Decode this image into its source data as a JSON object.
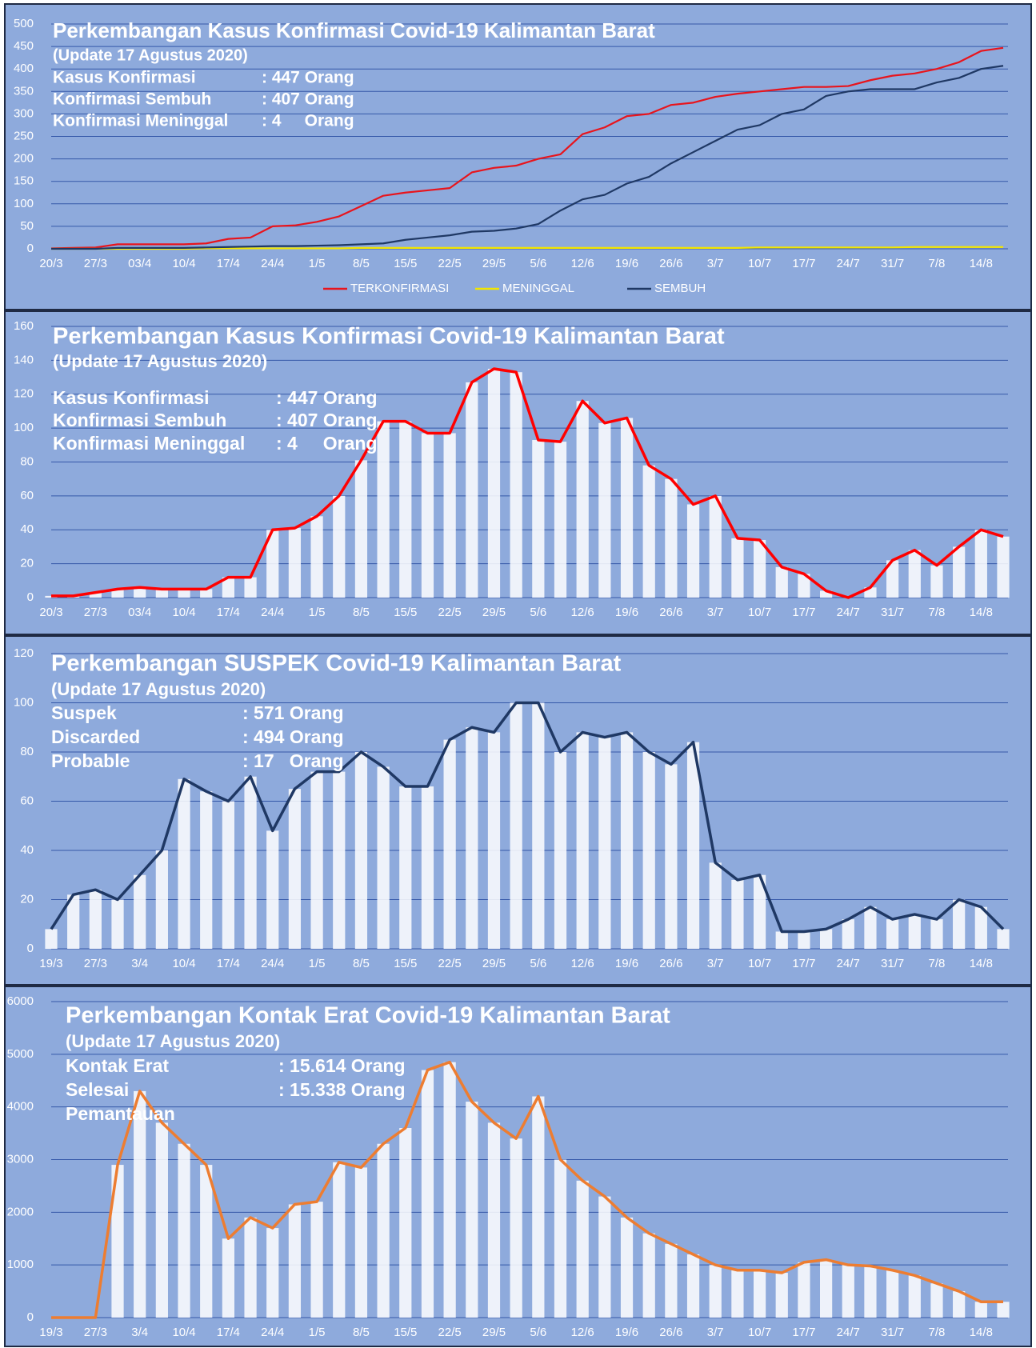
{
  "chart_data": [
    {
      "type": "line",
      "title": "Perkembangan Kasus Konfirmasi Covid-19 Kalimantan Barat",
      "subtitle": "(Update 17 Agustus 2020)",
      "info": [
        [
          "Kasus Konfirmasi",
          ": 447 Orang"
        ],
        [
          "Konfirmasi Sembuh",
          ": 407 Orang"
        ],
        [
          "Konfirmasi Meninggal",
          ": 4     Orang"
        ]
      ],
      "categories": [
        "20/3",
        null,
        "27/3",
        null,
        "03/4",
        null,
        "10/4",
        null,
        "17/4",
        null,
        "24/4",
        null,
        "1/5",
        null,
        "8/5",
        null,
        "15/5",
        null,
        "22/5",
        null,
        "29/5",
        null,
        "5/6",
        null,
        "12/6",
        null,
        "19/6",
        null,
        "26/6",
        null,
        "3/7",
        null,
        "10/7",
        null,
        "17/7",
        null,
        "24/7",
        null,
        "31/7",
        null,
        "7/8",
        null,
        "14/8",
        null
      ],
      "series": [
        {
          "name": "TERKONFIRMASI",
          "color": "#e8141c",
          "values": [
            1,
            2,
            3,
            10,
            10,
            10,
            10,
            12,
            22,
            25,
            50,
            52,
            60,
            72,
            95,
            118,
            125,
            130,
            135,
            170,
            180,
            185,
            200,
            210,
            255,
            270,
            295,
            300,
            320,
            325,
            338,
            345,
            350,
            355,
            360,
            360,
            362,
            375,
            385,
            390,
            400,
            415,
            440,
            447
          ]
        },
        {
          "name": "MENINGGAL",
          "color": "#f2e600",
          "values": [
            0,
            0,
            0,
            0,
            0,
            0,
            0,
            1,
            1,
            1,
            1,
            1,
            1,
            1,
            2,
            2,
            2,
            2,
            2,
            2,
            2,
            2,
            2,
            2,
            2,
            2,
            2,
            2,
            2,
            2,
            2,
            2,
            3,
            3,
            3,
            3,
            3,
            3,
            3,
            4,
            4,
            4,
            4,
            4
          ]
        },
        {
          "name": "SEMBUH",
          "color": "#1f3864",
          "values": [
            0,
            0,
            0,
            2,
            2,
            2,
            2,
            3,
            4,
            5,
            6,
            6,
            7,
            8,
            10,
            12,
            20,
            25,
            30,
            38,
            40,
            45,
            55,
            85,
            110,
            120,
            145,
            160,
            190,
            215,
            240,
            265,
            275,
            300,
            310,
            340,
            350,
            355,
            355,
            355,
            370,
            380,
            400,
            407
          ]
        }
      ],
      "ylim": [
        0,
        500
      ],
      "yticks": [
        0,
        50,
        100,
        150,
        200,
        250,
        300,
        350,
        400,
        450,
        500
      ],
      "grid": true,
      "legend": "bottom"
    },
    {
      "type": "bar-line",
      "title": "Perkembangan Kasus Konfirmasi Covid-19 Kalimantan Barat",
      "subtitle": "(Update 17 Agustus 2020)",
      "info": [
        [
          "Kasus Konfirmasi",
          ": 447 Orang"
        ],
        [
          "Konfirmasi Sembuh",
          ": 407 Orang"
        ],
        [
          "Konfirmasi Meninggal",
          ": 4     Orang"
        ]
      ],
      "categories": [
        "20/3",
        null,
        "27/3",
        null,
        "03/4",
        null,
        "10/4",
        null,
        "17/4",
        null,
        "24/4",
        null,
        "1/5",
        null,
        "8/5",
        null,
        "15/5",
        null,
        "22/5",
        null,
        "29/5",
        null,
        "5/6",
        null,
        "12/6",
        null,
        "19/6",
        null,
        "26/6",
        null,
        "3/7",
        null,
        "10/7",
        null,
        "17/7",
        null,
        "24/7",
        null,
        "31/7",
        null,
        "7/8",
        null,
        "14/8",
        null
      ],
      "values": [
        1,
        1,
        3,
        5,
        6,
        5,
        5,
        5,
        12,
        12,
        40,
        41,
        48,
        60,
        81,
        104,
        104,
        97,
        97,
        127,
        135,
        133,
        93,
        92,
        116,
        103,
        106,
        78,
        70,
        55,
        60,
        35,
        34,
        18,
        14,
        4,
        0,
        6,
        22,
        28,
        19,
        30,
        40,
        36
      ],
      "color": "#ff0000",
      "ylim": [
        0,
        160
      ],
      "yticks": [
        0,
        20,
        40,
        60,
        80,
        100,
        120,
        140,
        160
      ],
      "grid": true
    },
    {
      "type": "bar-line",
      "title": "Perkembangan SUSPEK Covid-19 Kalimantan Barat",
      "subtitle": "(Update 17 Agustus 2020)",
      "info": [
        [
          "Suspek",
          ": 571 Orang"
        ],
        [
          "Discarded",
          ": 494 Orang"
        ],
        [
          "Probable",
          ": 17   Orang"
        ]
      ],
      "categories": [
        "19/3",
        null,
        "27/3",
        null,
        "3/4",
        null,
        "10/4",
        null,
        "17/4",
        null,
        "24/4",
        null,
        "1/5",
        null,
        "8/5",
        null,
        "15/5",
        null,
        "22/5",
        null,
        "29/5",
        null,
        "5/6",
        null,
        "12/6",
        null,
        "19/6",
        null,
        "26/6",
        null,
        "3/7",
        null,
        "10/7",
        null,
        "17/7",
        null,
        "24/7",
        null,
        "31/7",
        null,
        "7/8",
        null,
        "14/8",
        null
      ],
      "values": [
        8,
        22,
        24,
        20,
        30,
        40,
        69,
        64,
        60,
        70,
        48,
        65,
        72,
        72,
        80,
        74,
        66,
        66,
        85,
        90,
        88,
        100,
        100,
        80,
        88,
        86,
        88,
        80,
        75,
        84,
        35,
        28,
        30,
        7,
        7,
        8,
        12,
        17,
        12,
        14,
        12,
        20,
        17,
        8
      ],
      "color": "#1f3864",
      "ylim": [
        0,
        120
      ],
      "yticks": [
        0,
        20,
        40,
        60,
        80,
        100,
        120
      ],
      "grid": true
    },
    {
      "type": "bar-line",
      "title": "Perkembangan Kontak Erat Covid-19 Kalimantan Barat",
      "subtitle": "(Update 17 Agustus 2020)",
      "info": [
        [
          "Kontak Erat",
          ": 15.614 Orang"
        ],
        [
          "Selesai",
          ": 15.338 Orang"
        ],
        [
          "Pemantauan"
        ]
      ],
      "categories": [
        "19/3",
        null,
        "27/3",
        null,
        "3/4",
        null,
        "10/4",
        null,
        "17/4",
        null,
        "24/4",
        null,
        "1/5",
        null,
        "8/5",
        null,
        "15/5",
        null,
        "22/5",
        null,
        "29/5",
        null,
        "5/6",
        null,
        "12/6",
        null,
        "19/6",
        null,
        "26/6",
        null,
        "3/7",
        null,
        "10/7",
        null,
        "17/7",
        null,
        "24/7",
        null,
        "31/7",
        null,
        "7/8",
        null,
        "14/8",
        null
      ],
      "values": [
        0,
        0,
        0,
        2900,
        4300,
        3700,
        3300,
        2900,
        1500,
        1900,
        1700,
        2150,
        2200,
        2950,
        2850,
        3300,
        3600,
        4700,
        4850,
        4100,
        3700,
        3400,
        4200,
        3000,
        2600,
        2300,
        1900,
        1600,
        1400,
        1200,
        1000,
        900,
        900,
        850,
        1050,
        1100,
        1000,
        980,
        900,
        800,
        650,
        500,
        300,
        300
      ],
      "color": "#ed7d31",
      "ylim": [
        0,
        6000
      ],
      "yticks": [
        0,
        1000,
        2000,
        3000,
        4000,
        5000,
        6000
      ],
      "grid": true
    }
  ]
}
